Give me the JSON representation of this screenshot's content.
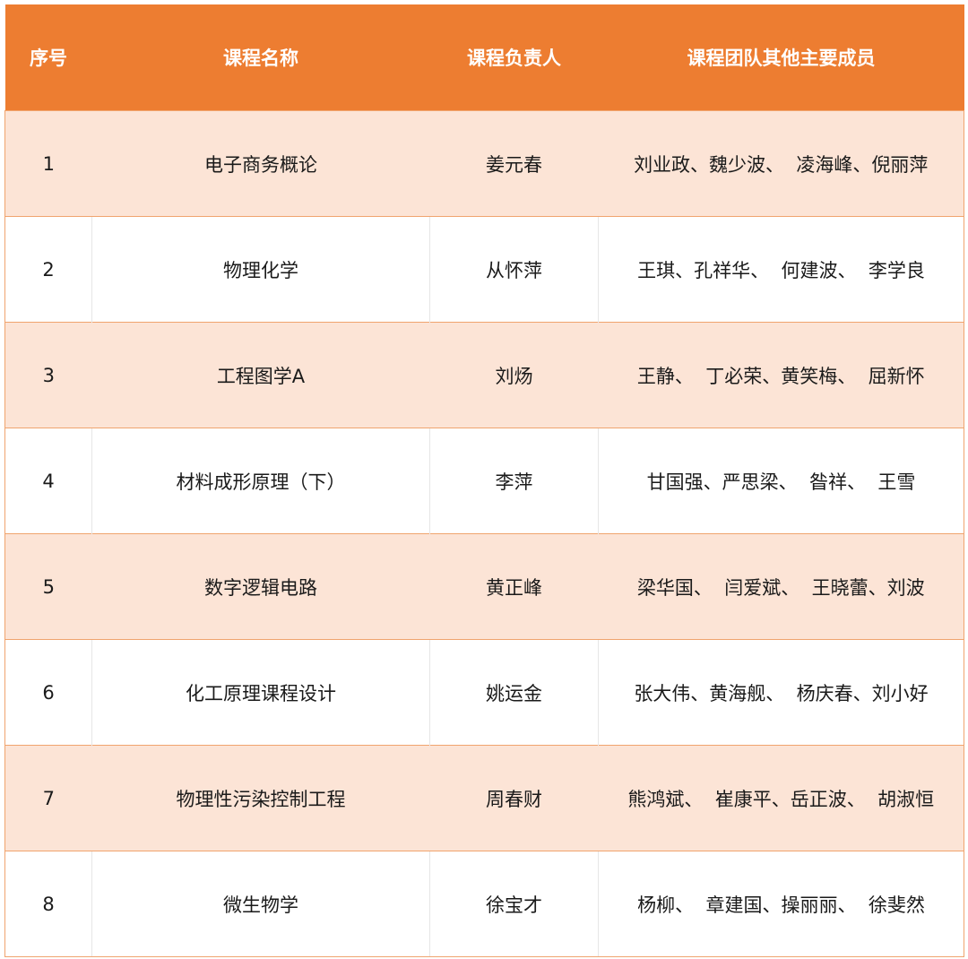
{
  "colors": {
    "header": "#ED7D31",
    "band": "#FCE4D6",
    "border": "#F0A46E"
  },
  "table": {
    "headers": [
      "序号",
      "课程名称",
      "课程负责人",
      "课程团队其他主要成员"
    ],
    "rows": [
      [
        "1",
        "电子商务概论",
        "姜元春",
        "刘业政、魏少波、  凌海峰、倪丽萍"
      ],
      [
        "2",
        "物理化学",
        "从怀萍",
        "王琪、孔祥华、  何建波、  李学良"
      ],
      [
        "3",
        "工程图学A",
        "刘炀",
        "王静、  丁必荣、黄笑梅、  屈新怀"
      ],
      [
        "4",
        "材料成形原理（下）",
        "李萍",
        "甘国强、严思梁、  昝祥、  王雪"
      ],
      [
        "5",
        "数字逻辑电路",
        "黄正峰",
        "梁华国、  闫爱斌、  王晓蕾、刘波"
      ],
      [
        "6",
        "化工原理课程设计",
        "姚运金",
        "张大伟、黄海舰、  杨庆春、刘小好"
      ],
      [
        "7",
        "物理性污染控制工程",
        "周春财",
        "熊鸿斌、  崔康平、岳正波、  胡淑恒"
      ],
      [
        "8",
        "微生物学",
        "徐宝才",
        "杨柳、  章建国、操丽丽、  徐斐然"
      ]
    ]
  }
}
